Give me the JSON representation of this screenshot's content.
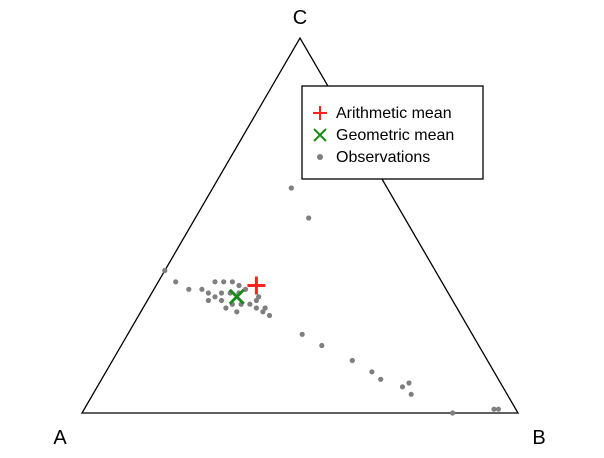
{
  "chart_data": {
    "type": "scatter",
    "subtype": "ternary",
    "vertices": {
      "a": "A",
      "b": "B",
      "c": "C"
    },
    "legend": {
      "placement": "top-right",
      "entries": [
        {
          "label": "Arithmetic mean",
          "marker": "plus",
          "color": "#ff2020"
        },
        {
          "label": "Geometric mean",
          "marker": "x",
          "color": "#1a8a1a"
        },
        {
          "label": "Observations",
          "marker": "dot",
          "color": "#7f7f7f"
        }
      ]
    },
    "arithmetic_mean": {
      "a": 0.43,
      "b": 0.23,
      "c": 0.34
    },
    "geometric_mean": {
      "a": 0.49,
      "b": 0.2,
      "c": 0.31
    },
    "observations": [
      {
        "a": 0.22,
        "b": 0.18,
        "c": 0.6
      },
      {
        "a": 0.22,
        "b": 0.26,
        "c": 0.52
      },
      {
        "a": 0.62,
        "b": 0.0,
        "c": 0.38
      },
      {
        "a": 0.61,
        "b": 0.04,
        "c": 0.35
      },
      {
        "a": 0.59,
        "b": 0.08,
        "c": 0.33
      },
      {
        "a": 0.56,
        "b": 0.11,
        "c": 0.33
      },
      {
        "a": 0.56,
        "b": 0.14,
        "c": 0.3
      },
      {
        "a": 0.55,
        "b": 0.13,
        "c": 0.32
      },
      {
        "a": 0.54,
        "b": 0.15,
        "c": 0.31
      },
      {
        "a": 0.53,
        "b": 0.17,
        "c": 0.3
      },
      {
        "a": 0.53,
        "b": 0.19,
        "c": 0.28
      },
      {
        "a": 0.52,
        "b": 0.13,
        "c": 0.35
      },
      {
        "a": 0.52,
        "b": 0.16,
        "c": 0.32
      },
      {
        "a": 0.51,
        "b": 0.2,
        "c": 0.29
      },
      {
        "a": 0.51,
        "b": 0.22,
        "c": 0.27
      },
      {
        "a": 0.5,
        "b": 0.15,
        "c": 0.35
      },
      {
        "a": 0.5,
        "b": 0.18,
        "c": 0.32
      },
      {
        "a": 0.49,
        "b": 0.22,
        "c": 0.29
      },
      {
        "a": 0.48,
        "b": 0.17,
        "c": 0.35
      },
      {
        "a": 0.48,
        "b": 0.2,
        "c": 0.32
      },
      {
        "a": 0.47,
        "b": 0.19,
        "c": 0.34
      },
      {
        "a": 0.47,
        "b": 0.24,
        "c": 0.29
      },
      {
        "a": 0.46,
        "b": 0.21,
        "c": 0.33
      },
      {
        "a": 0.46,
        "b": 0.26,
        "c": 0.28
      },
      {
        "a": 0.45,
        "b": 0.25,
        "c": 0.3
      },
      {
        "a": 0.45,
        "b": 0.28,
        "c": 0.27
      },
      {
        "a": 0.44,
        "b": 0.3,
        "c": 0.26
      },
      {
        "a": 0.44,
        "b": 0.25,
        "c": 0.31
      },
      {
        "a": 0.44,
        "b": 0.28,
        "c": 0.28
      },
      {
        "a": 0.39,
        "b": 0.4,
        "c": 0.21
      },
      {
        "a": 0.36,
        "b": 0.46,
        "c": 0.18
      },
      {
        "a": 0.31,
        "b": 0.55,
        "c": 0.14
      },
      {
        "a": 0.28,
        "b": 0.61,
        "c": 0.11
      },
      {
        "a": 0.27,
        "b": 0.64,
        "c": 0.09
      },
      {
        "a": 0.23,
        "b": 0.7,
        "c": 0.07
      },
      {
        "a": 0.21,
        "b": 0.71,
        "c": 0.08
      },
      {
        "a": 0.22,
        "b": 0.73,
        "c": 0.05
      },
      {
        "a": 0.15,
        "b": 0.85,
        "c": 0.0
      },
      {
        "a": 0.05,
        "b": 0.94,
        "c": 0.01
      },
      {
        "a": 0.04,
        "b": 0.95,
        "c": 0.01
      }
    ]
  }
}
